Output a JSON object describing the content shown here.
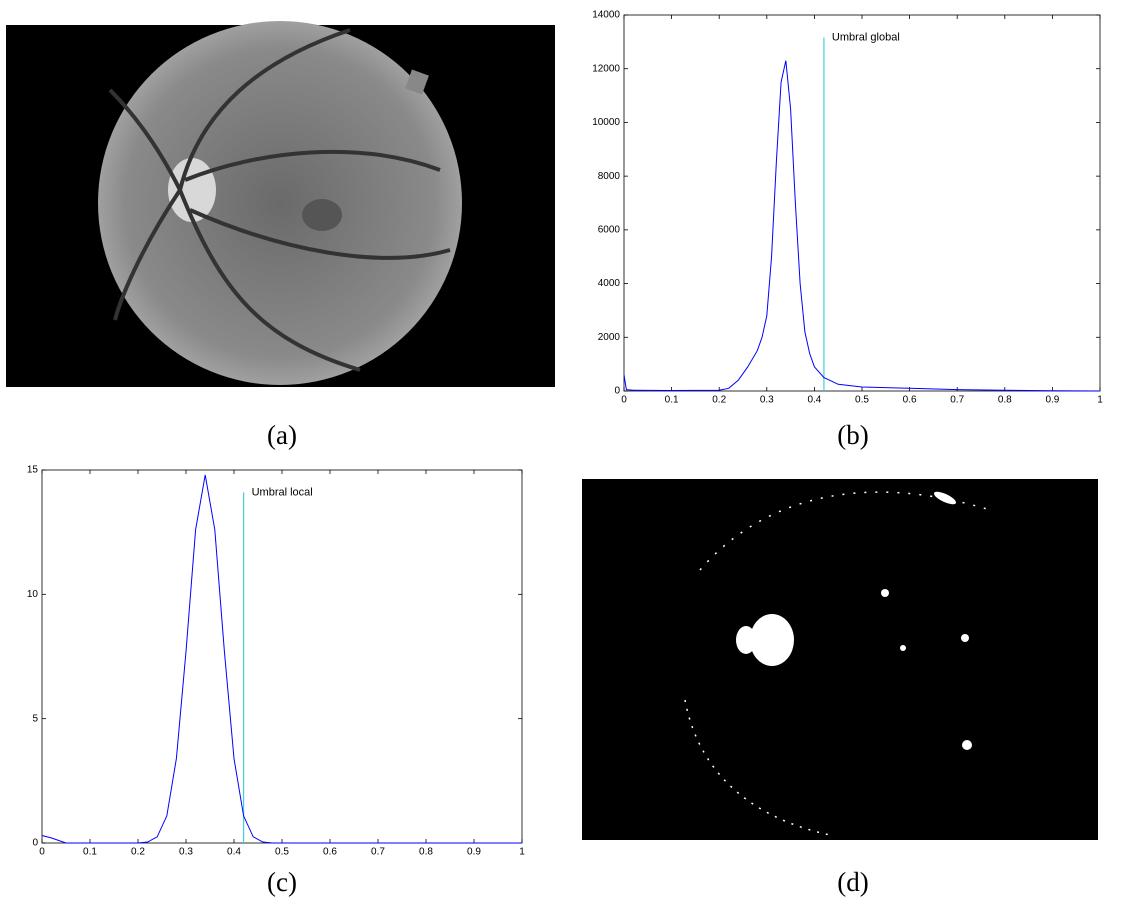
{
  "captions": [
    "(a)",
    "(b)",
    "(c)",
    "(d)"
  ],
  "chart_data": [
    {
      "type": "line",
      "color": "#0000ff",
      "threshold_color": "#40d0e0",
      "annotation": "Umbral global",
      "threshold": 0.42,
      "x": [
        0,
        0.005,
        0.02,
        0.1,
        0.2,
        0.22,
        0.24,
        0.26,
        0.28,
        0.29,
        0.3,
        0.31,
        0.32,
        0.33,
        0.34,
        0.35,
        0.36,
        0.37,
        0.38,
        0.39,
        0.4,
        0.42,
        0.45,
        0.5,
        0.6,
        0.7,
        0.8,
        0.9,
        1
      ],
      "values": [
        600,
        50,
        30,
        20,
        30,
        100,
        400,
        900,
        1500,
        2000,
        2800,
        5000,
        8500,
        11500,
        12300,
        10500,
        7000,
        4000,
        2200,
        1400,
        900,
        500,
        250,
        150,
        100,
        50,
        30,
        10,
        0
      ],
      "xlim": [
        0,
        1
      ],
      "xticks": [
        0,
        0.1,
        0.2,
        0.3,
        0.4,
        0.5,
        0.6,
        0.7,
        0.8,
        0.9,
        1
      ],
      "ylim": [
        0,
        14000
      ],
      "yticks": [
        0,
        2000,
        4000,
        6000,
        8000,
        10000,
        12000,
        14000
      ]
    },
    {
      "type": "line",
      "color": "#0000ff",
      "threshold_color": "#40d0e0",
      "annotation": "Umbral local",
      "threshold": 0.42,
      "x": [
        0,
        0.02,
        0.05,
        0.1,
        0.2,
        0.22,
        0.24,
        0.26,
        0.28,
        0.3,
        0.32,
        0.34,
        0.36,
        0.38,
        0.4,
        0.42,
        0.44,
        0.46,
        0.48,
        0.5,
        1
      ],
      "values": [
        0.3,
        0.2,
        0,
        0,
        0,
        0.04,
        0.25,
        1.09,
        3.4,
        7.7,
        12.6,
        14.8,
        12.6,
        7.7,
        3.4,
        1.09,
        0.25,
        0.04,
        0,
        0,
        0
      ],
      "xlim": [
        0,
        1
      ],
      "xticks": [
        0,
        0.1,
        0.2,
        0.3,
        0.4,
        0.5,
        0.6,
        0.7,
        0.8,
        0.9,
        1
      ],
      "ylim": [
        0,
        15
      ],
      "yticks": [
        0,
        5,
        10,
        15
      ]
    }
  ]
}
